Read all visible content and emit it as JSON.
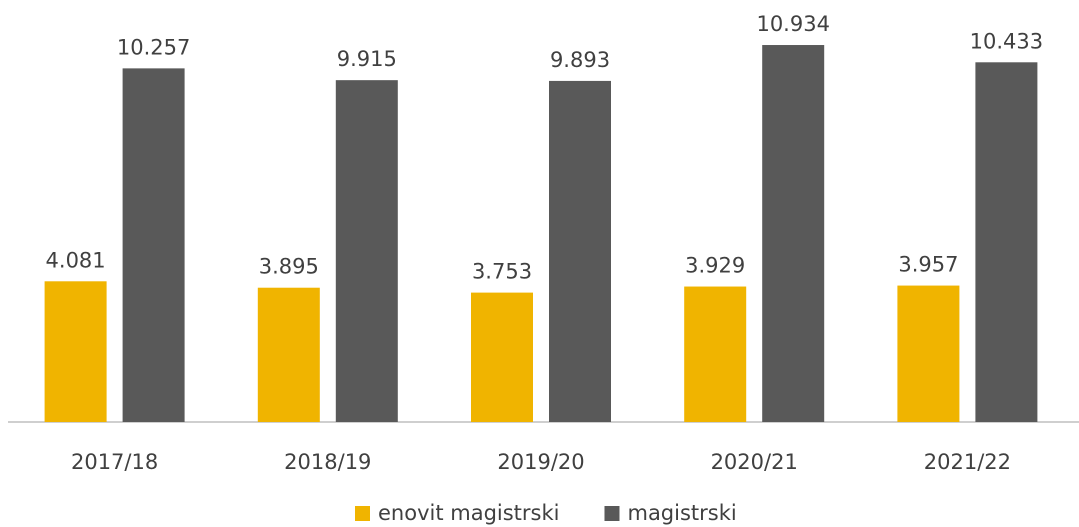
{
  "chart_data": {
    "type": "bar",
    "categories": [
      "2017/18",
      "2018/19",
      "2019/20",
      "2020/21",
      "2021/22"
    ],
    "series": [
      {
        "name": "enovit magistrski",
        "color": "#f0b400",
        "values": [
          4081,
          3895,
          3753,
          3929,
          3957
        ],
        "value_labels": [
          "4.081",
          "3.895",
          "3.753",
          "3.929",
          "3.957"
        ]
      },
      {
        "name": "magistrski",
        "color": "#595959",
        "values": [
          10257,
          9915,
          9893,
          10934,
          10433
        ],
        "value_labels": [
          "10.257",
          "9.915",
          "9.893",
          "10.934",
          "10.433"
        ]
      }
    ],
    "ylim": [
      0,
      12240
    ],
    "legend": "bottom"
  }
}
